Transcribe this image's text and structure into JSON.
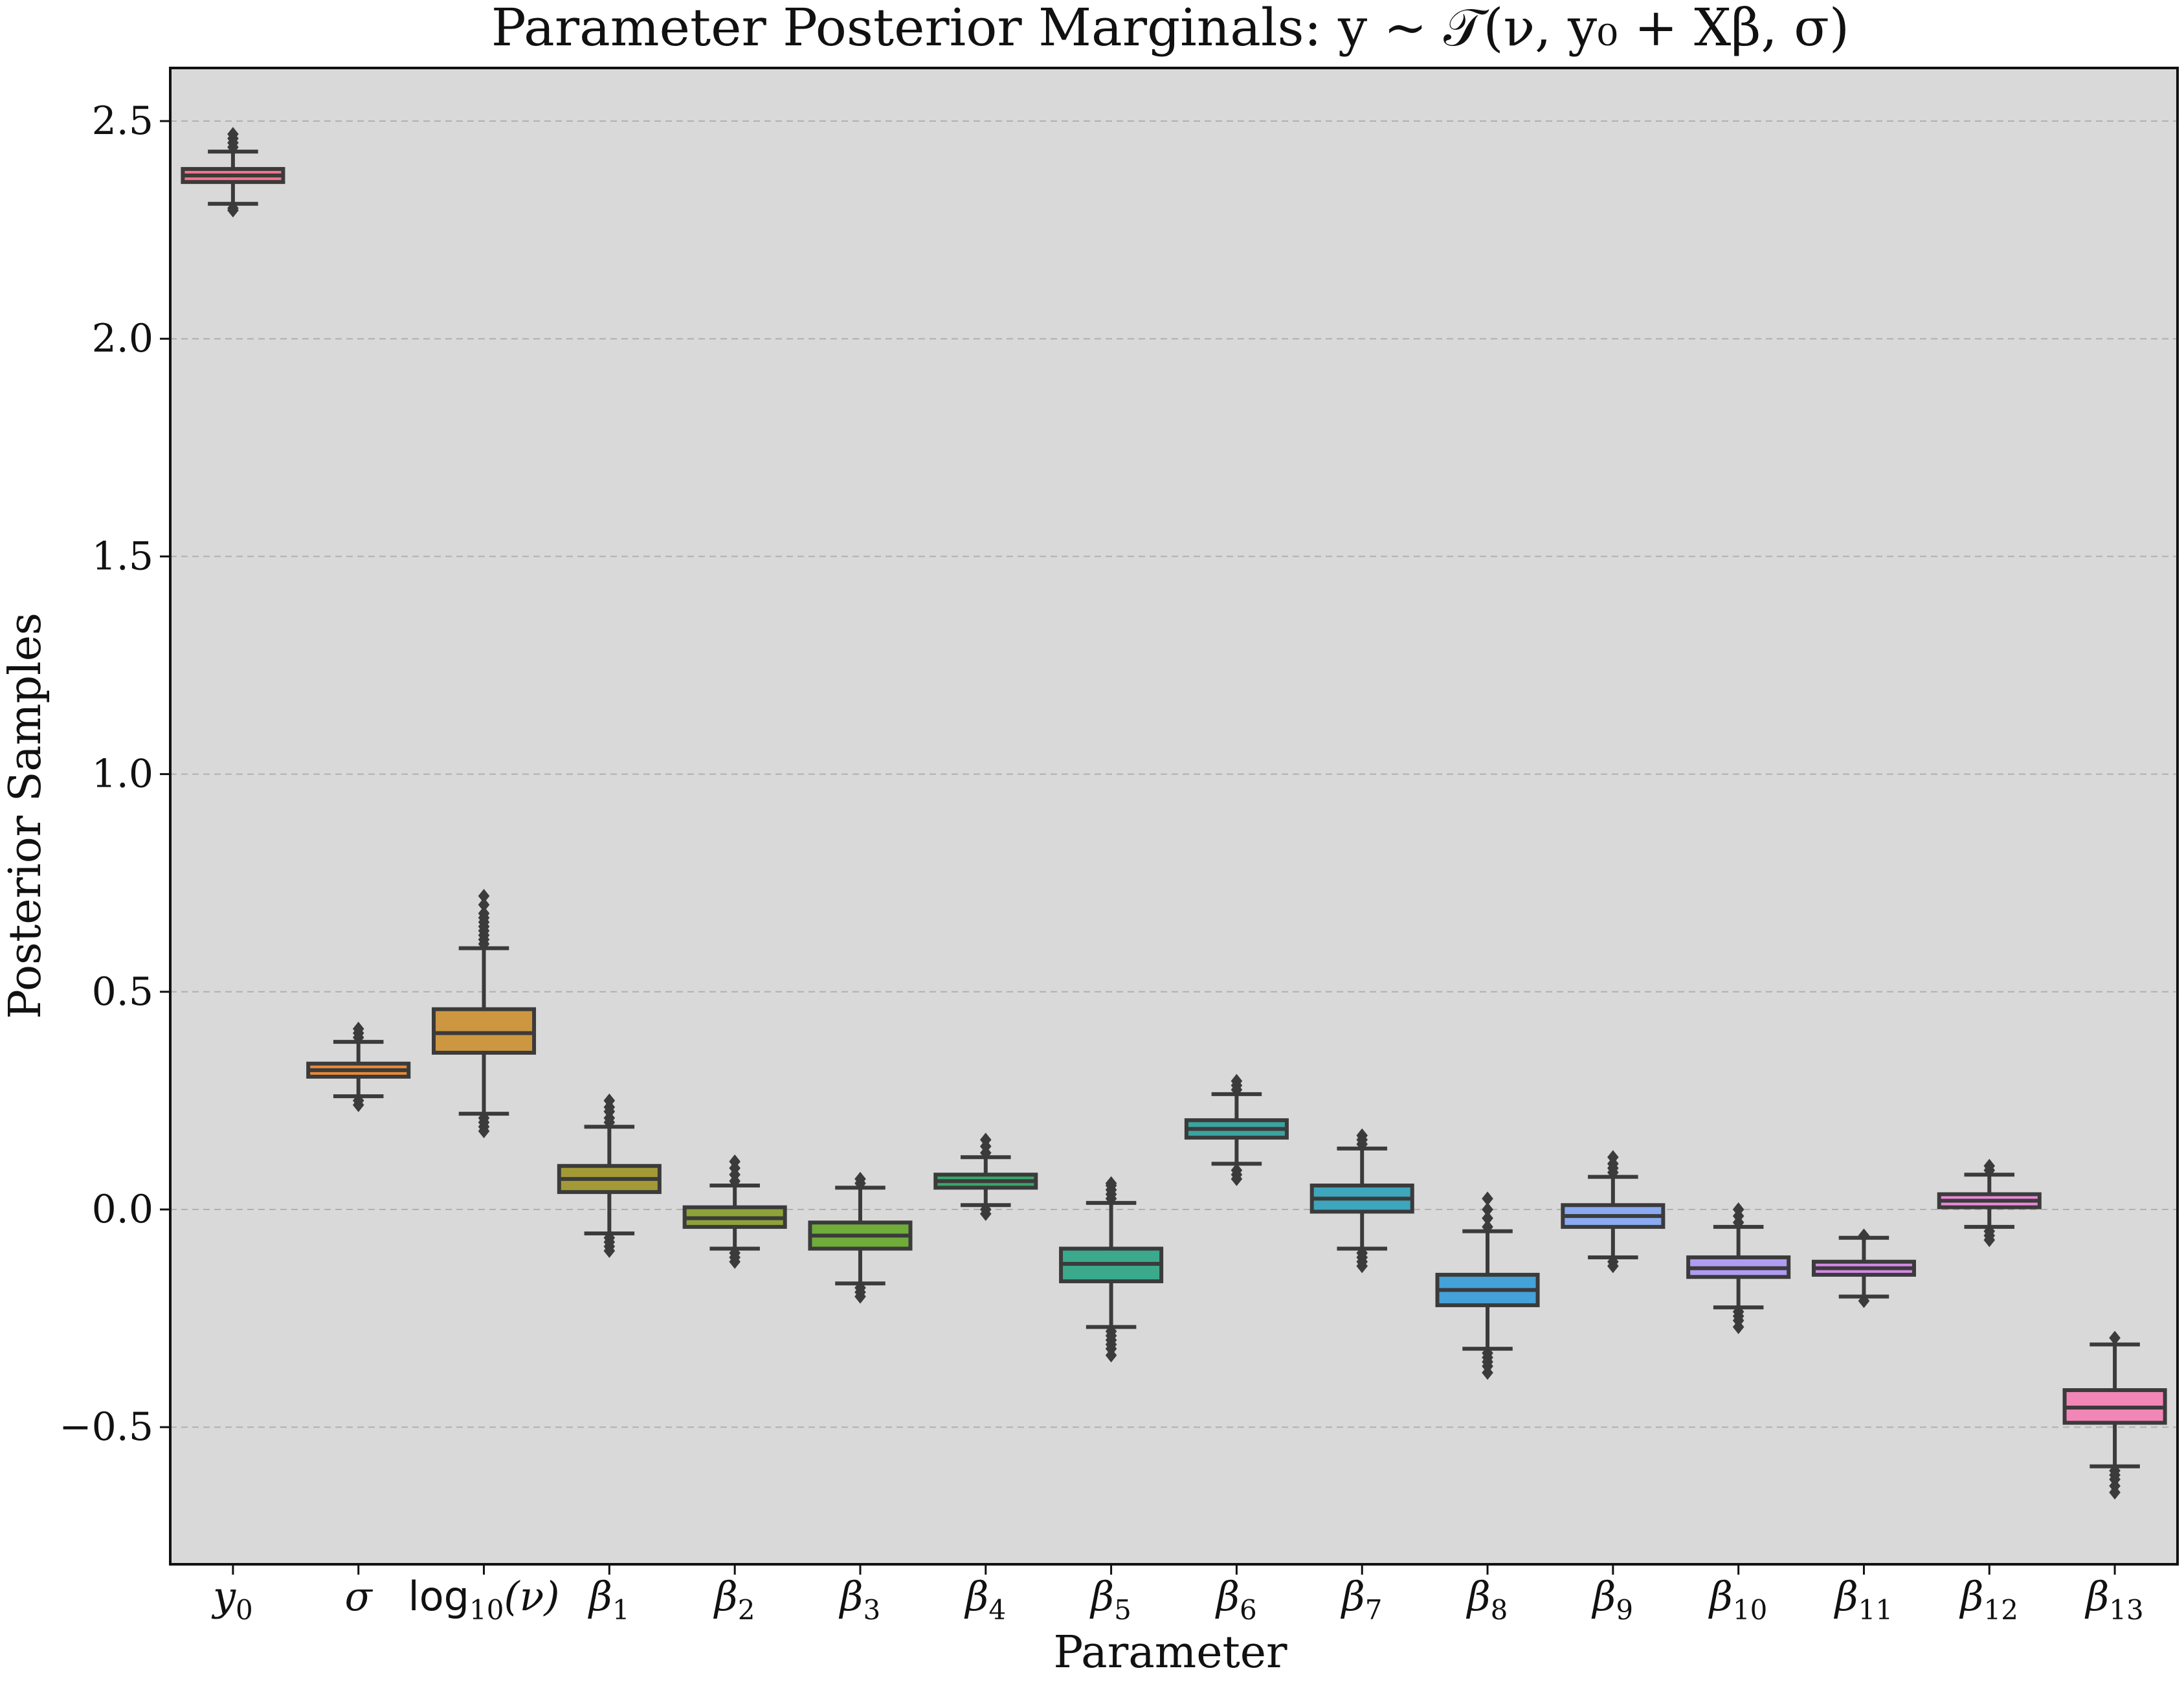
{
  "chart_data": {
    "type": "box",
    "title": "Parameter Posterior Marginals: y ~ 𝒯(ν, y₀ + Xβ, σ)",
    "xlabel": "Parameter",
    "ylabel": "Posterior Samples",
    "ylim": [
      -0.82,
      2.63
    ],
    "yticks": [
      -0.5,
      0.0,
      0.5,
      1.0,
      1.5,
      2.0,
      2.5
    ],
    "ytick_labels": [
      "−0.5",
      "0.0",
      "0.5",
      "1.0",
      "1.5",
      "2.0",
      "2.5"
    ],
    "grid": "horizontal-dashed",
    "background": "#d9d9d9",
    "series": [
      {
        "label_main": "y",
        "label_sub": "0",
        "label_style": "italic",
        "color": "#f77189",
        "q1": 2.36,
        "median": 2.375,
        "q3": 2.39,
        "whisker_low": 2.31,
        "whisker_high": 2.43,
        "outliers_low": [
          2.3,
          2.295
        ],
        "outliers_high": [
          2.44,
          2.45,
          2.46,
          2.47
        ]
      },
      {
        "label_main": "σ",
        "label_sub": "",
        "label_style": "italic",
        "color": "#e88b38",
        "q1": 0.305,
        "median": 0.32,
        "q3": 0.335,
        "whisker_low": 0.26,
        "whisker_high": 0.385,
        "outliers_low": [
          0.25,
          0.24
        ],
        "outliers_high": [
          0.395,
          0.405,
          0.415
        ]
      },
      {
        "label_main": "log",
        "label_sub": "10",
        "label_tail": "(ν)",
        "label_style": "mixed",
        "color": "#cd9640",
        "q1": 0.36,
        "median": 0.405,
        "q3": 0.46,
        "whisker_low": 0.22,
        "whisker_high": 0.6,
        "outliers_low": [
          0.21,
          0.2,
          0.19,
          0.18
        ],
        "outliers_high": [
          0.61,
          0.62,
          0.63,
          0.64,
          0.65,
          0.66,
          0.67,
          0.68,
          0.7,
          0.72
        ]
      },
      {
        "label_main": "β",
        "label_sub": "1",
        "label_style": "italic",
        "color": "#a39a36",
        "q1": 0.04,
        "median": 0.07,
        "q3": 0.1,
        "whisker_low": -0.055,
        "whisker_high": 0.19,
        "outliers_low": [
          -0.065,
          -0.075,
          -0.085,
          -0.095
        ],
        "outliers_high": [
          0.2,
          0.21,
          0.225,
          0.235,
          0.25
        ]
      },
      {
        "label_main": "β",
        "label_sub": "2",
        "label_style": "italic",
        "color": "#8fa239",
        "q1": -0.04,
        "median": -0.02,
        "q3": 0.005,
        "whisker_low": -0.09,
        "whisker_high": 0.055,
        "outliers_low": [
          -0.1,
          -0.11,
          -0.12
        ],
        "outliers_high": [
          0.065,
          0.08,
          0.095,
          0.11
        ]
      },
      {
        "label_main": "β",
        "label_sub": "3",
        "label_style": "italic",
        "color": "#6fac3a",
        "q1": -0.09,
        "median": -0.06,
        "q3": -0.03,
        "whisker_low": -0.17,
        "whisker_high": 0.05,
        "outliers_low": [
          -0.18,
          -0.19,
          -0.2
        ],
        "outliers_high": [
          0.06,
          0.07
        ]
      },
      {
        "label_main": "β",
        "label_sub": "4",
        "label_style": "italic",
        "color": "#38a86a",
        "q1": 0.05,
        "median": 0.065,
        "q3": 0.08,
        "whisker_low": 0.01,
        "whisker_high": 0.12,
        "outliers_low": [
          0.0,
          -0.01
        ],
        "outliers_high": [
          0.13,
          0.145,
          0.16
        ]
      },
      {
        "label_main": "β",
        "label_sub": "5",
        "label_style": "italic",
        "color": "#3aa98c",
        "q1": -0.165,
        "median": -0.125,
        "q3": -0.09,
        "whisker_low": -0.27,
        "whisker_high": 0.015,
        "outliers_low": [
          -0.28,
          -0.29,
          -0.3,
          -0.31,
          -0.32,
          -0.335
        ],
        "outliers_high": [
          0.025,
          0.035,
          0.045,
          0.055,
          0.06
        ]
      },
      {
        "label_main": "β",
        "label_sub": "6",
        "label_style": "italic",
        "color": "#3ba3a0",
        "q1": 0.165,
        "median": 0.185,
        "q3": 0.205,
        "whisker_low": 0.105,
        "whisker_high": 0.265,
        "outliers_low": [
          0.09,
          0.08,
          0.07
        ],
        "outliers_high": [
          0.275,
          0.285,
          0.295
        ]
      },
      {
        "label_main": "β",
        "label_sub": "7",
        "label_style": "italic",
        "color": "#3ea6bd",
        "q1": -0.005,
        "median": 0.025,
        "q3": 0.055,
        "whisker_low": -0.09,
        "whisker_high": 0.14,
        "outliers_low": [
          -0.1,
          -0.11,
          -0.12,
          -0.13
        ],
        "outliers_high": [
          0.15,
          0.16,
          0.17
        ]
      },
      {
        "label_main": "β",
        "label_sub": "8",
        "label_style": "italic",
        "color": "#44a2d8",
        "q1": -0.22,
        "median": -0.185,
        "q3": -0.15,
        "whisker_low": -0.32,
        "whisker_high": -0.05,
        "outliers_low": [
          -0.33,
          -0.34,
          -0.35,
          -0.36,
          -0.375
        ],
        "outliers_high": [
          -0.04,
          -0.02,
          0.0,
          0.025
        ]
      },
      {
        "label_main": "β",
        "label_sub": "9",
        "label_style": "italic",
        "color": "#8aaaf2",
        "q1": -0.04,
        "median": -0.015,
        "q3": 0.01,
        "whisker_low": -0.11,
        "whisker_high": 0.075,
        "outliers_low": [
          -0.12,
          -0.13
        ],
        "outliers_high": [
          0.085,
          0.095,
          0.105,
          0.12
        ]
      },
      {
        "label_main": "β",
        "label_sub": "10",
        "label_style": "italic",
        "color": "#b09bf2",
        "q1": -0.155,
        "median": -0.135,
        "q3": -0.11,
        "whisker_low": -0.225,
        "whisker_high": -0.04,
        "outliers_low": [
          -0.235,
          -0.245,
          -0.255,
          -0.27
        ],
        "outliers_high": [
          -0.03,
          -0.015,
          0.0
        ]
      },
      {
        "label_main": "β",
        "label_sub": "11",
        "label_style": "italic",
        "color": "#d489e8",
        "q1": -0.15,
        "median": -0.135,
        "q3": -0.12,
        "whisker_low": -0.2,
        "whisker_high": -0.065,
        "outliers_low": [
          -0.21
        ],
        "outliers_high": [
          -0.06
        ]
      },
      {
        "label_main": "β",
        "label_sub": "12",
        "label_style": "italic",
        "color": "#ea8ad8",
        "q1": 0.005,
        "median": 0.02,
        "q3": 0.035,
        "whisker_low": -0.04,
        "whisker_high": 0.08,
        "outliers_low": [
          -0.05,
          -0.06,
          -0.07
        ],
        "outliers_high": [
          0.09,
          0.1
        ]
      },
      {
        "label_main": "β",
        "label_sub": "13",
        "label_style": "italic",
        "color": "#f286b6",
        "q1": -0.49,
        "median": -0.455,
        "q3": -0.415,
        "whisker_low": -0.59,
        "whisker_high": -0.31,
        "outliers_low": [
          -0.6,
          -0.61,
          -0.62,
          -0.635,
          -0.65
        ],
        "outliers_high": [
          -0.295
        ]
      }
    ]
  }
}
